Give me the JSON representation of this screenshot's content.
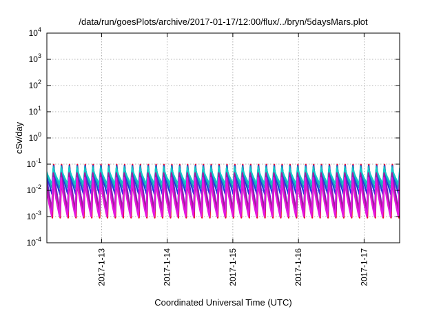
{
  "chart_data": {
    "type": "line",
    "title": "/data/run/goesPlots/archive/2017-01-17/12:00/flux/../bryn/5daysMars.plot",
    "xlabel": "Coordinated Universal Time (UTC)",
    "ylabel": "cSv/day",
    "yscale": "log",
    "ylim": [
      0.0001,
      10000
    ],
    "xlim": [
      "2017-01-12T04:00",
      "2017-01-17T13:00"
    ],
    "grid": true,
    "legend": "none",
    "y_ticks": [
      {
        "value": 0.0001,
        "base": "10",
        "exp": "-4"
      },
      {
        "value": 0.001,
        "base": "10",
        "exp": "-3"
      },
      {
        "value": 0.01,
        "base": "10",
        "exp": "-2"
      },
      {
        "value": 0.1,
        "base": "10",
        "exp": "-1"
      },
      {
        "value": 1,
        "base": "10",
        "exp": "0"
      },
      {
        "value": 10,
        "base": "10",
        "exp": "1"
      },
      {
        "value": 100,
        "base": "10",
        "exp": "2"
      },
      {
        "value": 1000,
        "base": "10",
        "exp": "3"
      },
      {
        "value": 10000,
        "base": "10",
        "exp": "4"
      }
    ],
    "x_ticks": [
      {
        "value": "2017-01-13T00:00",
        "label": "2017-1-13"
      },
      {
        "value": "2017-01-14T00:00",
        "label": "2017-1-14"
      },
      {
        "value": "2017-01-15T00:00",
        "label": "2017-1-15"
      },
      {
        "value": "2017-01-16T00:00",
        "label": "2017-1-16"
      },
      {
        "value": "2017-01-17T00:00",
        "label": "2017-1-17"
      }
    ],
    "cycle_period_hours": 2.88,
    "series": [
      {
        "color": "#e8102a",
        "peak": 0.11,
        "trough": 0.0009
      },
      {
        "color": "#5b2ad6",
        "peak": 0.1,
        "trough": 0.0015
      },
      {
        "color": "#1f36e0",
        "peak": 0.095,
        "trough": 0.007
      },
      {
        "color": "#1aa6b8",
        "peak": 0.085,
        "trough": 0.012
      },
      {
        "color": "#12c8c8",
        "peak": 0.075,
        "trough": 0.018
      },
      {
        "color": "#a21aa0",
        "peak": 0.05,
        "trough": 0.002
      },
      {
        "color": "#e617e0",
        "peak": 0.035,
        "trough": 0.001
      }
    ]
  }
}
